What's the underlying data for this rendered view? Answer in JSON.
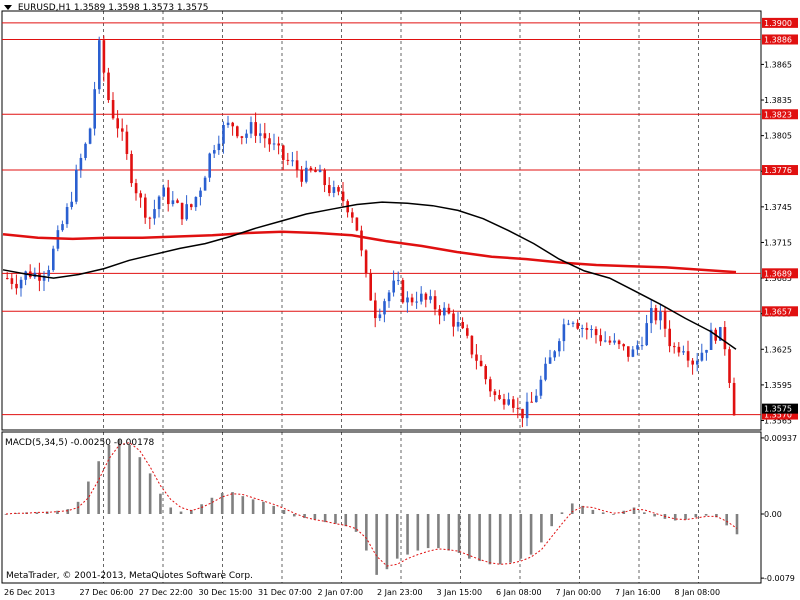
{
  "header": {
    "menu_icon": "triangle-down-icon",
    "symbol": "EURUSD,H1",
    "ohlc": "1.3589 1.3598 1.3573 1.3575"
  },
  "indicator": {
    "label": "MACD(5,34,5) -0.00250 -0.00178",
    "macd": -0.0025,
    "signal": -0.00178
  },
  "copyright": "MetaTrader, © 2001-2013, MetaQuotes Software Corp.",
  "colors": {
    "background": "#ffffff",
    "frame": "#000000",
    "bull": "#2a5fd0",
    "bear": "#e01010",
    "levels": "#e01010",
    "ma_fast": "#000000",
    "ma_slow": "#e01010",
    "histogram": "#808080",
    "signal": "#e01010",
    "grid": "#000000"
  },
  "chart_data": [
    {
      "type": "candlestick",
      "symbol": "EURUSD",
      "timeframe": "H1",
      "grid": "vertical dotted",
      "ylim": [
        1.3557,
        1.391
      ],
      "y_ticks": [
        "1.3865",
        "1.3835",
        "1.3805",
        "1.3775",
        "1.3745",
        "1.3715",
        "1.3685",
        "1.3655",
        "1.3625",
        "1.3595",
        "1.3565"
      ],
      "x_ticks": [
        "26 Dec 2013",
        "27 Dec 06:00",
        "27 Dec 22:00",
        "30 Dec 15:00",
        "31 Dec 07:00",
        "2 Jan 07:00",
        "2 Jan 23:00",
        "3 Jan 15:00",
        "6 Jan 08:00",
        "7 Jan 00:00",
        "7 Jan 16:00",
        "8 Jan 08:00"
      ],
      "current_price": "1.3575",
      "price_levels": [
        "1.3900",
        "1.3886",
        "1.3823",
        "1.3776",
        "1.3689",
        "1.3657",
        "1.3570"
      ],
      "close_path": [
        1.3685,
        1.3682,
        1.369,
        1.3688,
        1.3695,
        1.372,
        1.3745,
        1.378,
        1.3805,
        1.388,
        1.383,
        1.381,
        1.3775,
        1.375,
        1.3735,
        1.3758,
        1.375,
        1.374,
        1.3745,
        1.3765,
        1.3795,
        1.381,
        1.3815,
        1.3805,
        1.3812,
        1.3805,
        1.3795,
        1.3785,
        1.378,
        1.377,
        1.3775,
        1.3765,
        1.3755,
        1.375,
        1.3735,
        1.3685,
        1.3655,
        1.367,
        1.368,
        1.3665,
        1.367,
        1.3665,
        1.366,
        1.3655,
        1.3645,
        1.363,
        1.3615,
        1.3595,
        1.358,
        1.359,
        1.357,
        1.3575,
        1.3595,
        1.3615,
        1.364,
        1.3655,
        1.3645,
        1.364,
        1.3635,
        1.363,
        1.3625,
        1.362,
        1.3635,
        1.3655,
        1.365,
        1.3625,
        1.363,
        1.3615,
        1.3625,
        1.364,
        1.3635,
        1.3575
      ],
      "ma_fast": [
        1.3692,
        1.3688,
        1.3685,
        1.3688,
        1.3693,
        1.37,
        1.3705,
        1.371,
        1.3714,
        1.372,
        1.3727,
        1.3733,
        1.3739,
        1.3743,
        1.3747,
        1.3749,
        1.3748,
        1.3746,
        1.3742,
        1.3735,
        1.3725,
        1.3714,
        1.3701,
        1.3691,
        1.3685,
        1.3674,
        1.3663,
        1.3651,
        1.364,
        1.3625
      ],
      "ma_slow": [
        1.3722,
        1.3719,
        1.3718,
        1.3719,
        1.3719,
        1.372,
        1.3721,
        1.3723,
        1.3724,
        1.3723,
        1.3721,
        1.3716,
        1.3712,
        1.3707,
        1.3703,
        1.3701,
        1.3698,
        1.3696,
        1.3695,
        1.3694,
        1.3692,
        1.369
      ],
      "series": [
        {
          "name": "",
          "role": "price"
        },
        {
          "name": "",
          "role": "moving average (fast)"
        },
        {
          "name": "",
          "role": "moving average (slow)"
        }
      ]
    },
    {
      "type": "histogram",
      "indicator": "MACD",
      "ylim": [
        -0.0085,
        0.0101
      ],
      "y_ticks": [
        "0.00937",
        "0.00",
        "-0.0079"
      ],
      "histogram": [
        0.0,
        0.0001,
        0.0002,
        0.0002,
        0.0003,
        0.0004,
        0.0006,
        0.0015,
        0.004,
        0.0065,
        0.0085,
        0.0092,
        0.0085,
        0.007,
        0.005,
        0.0025,
        0.0008,
        0.0003,
        0.0005,
        0.0012,
        0.002,
        0.0026,
        0.0027,
        0.0022,
        0.0018,
        0.0015,
        0.001,
        0.0005,
        -0.0003,
        -0.0005,
        -0.0007,
        -0.001,
        -0.0012,
        -0.0015,
        -0.0022,
        -0.0045,
        -0.0075,
        -0.0068,
        -0.0055,
        -0.005,
        -0.0045,
        -0.0042,
        -0.0042,
        -0.0045,
        -0.0048,
        -0.0055,
        -0.0058,
        -0.0062,
        -0.0062,
        -0.006,
        -0.0055,
        -0.005,
        -0.0035,
        -0.0015,
        0.0002,
        0.0013,
        0.001,
        0.0005,
        0.0002,
        0.0,
        0.0004,
        0.0008,
        0.0002,
        -0.0003,
        -0.0006,
        -0.0008,
        -0.0007,
        -0.0004,
        -0.0002,
        -0.0004,
        -0.0014,
        -0.0025
      ],
      "signal": [
        0.0,
        0.0001,
        0.0001,
        0.0002,
        0.0002,
        0.0003,
        0.0004,
        0.0008,
        0.002,
        0.0042,
        0.0068,
        0.0085,
        0.0088,
        0.0078,
        0.0058,
        0.0035,
        0.0018,
        0.0008,
        0.0004,
        0.0008,
        0.0014,
        0.0021,
        0.0025,
        0.0024,
        0.002,
        0.0016,
        0.0012,
        0.0007,
        0.0001,
        -0.0004,
        -0.0007,
        -0.0009,
        -0.0012,
        -0.0014,
        -0.0018,
        -0.003,
        -0.0052,
        -0.0064,
        -0.0062,
        -0.0055,
        -0.005,
        -0.0046,
        -0.0043,
        -0.0044,
        -0.0046,
        -0.0051,
        -0.0056,
        -0.006,
        -0.0062,
        -0.0061,
        -0.0058,
        -0.0053,
        -0.0044,
        -0.0028,
        -0.0012,
        0.0003,
        0.0009,
        0.0008,
        0.0004,
        0.0001,
        0.0002,
        0.0006,
        0.0005,
        0.0001,
        -0.0003,
        -0.0006,
        -0.0007,
        -0.0005,
        -0.0003,
        -0.0003,
        -0.0009,
        -0.00178
      ]
    }
  ]
}
